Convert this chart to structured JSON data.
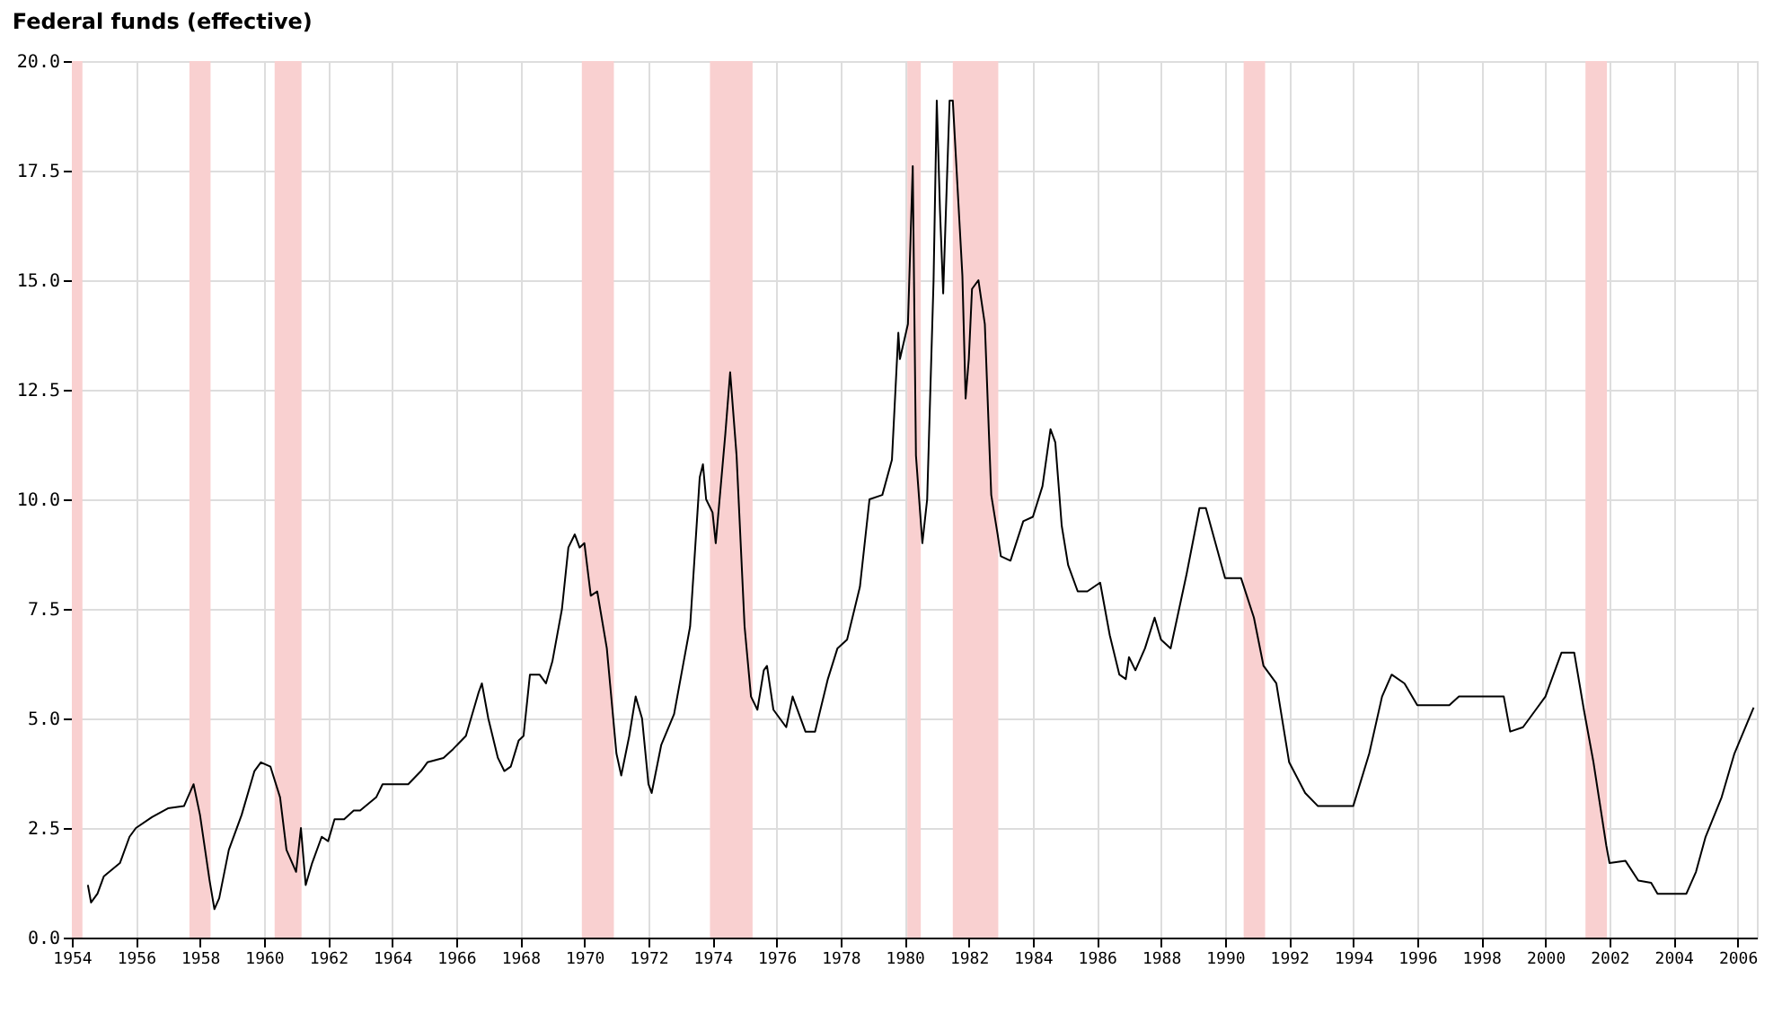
{
  "chart_data": {
    "type": "line",
    "title": "Federal funds (effective)",
    "xlim": [
      1954,
      2006.6
    ],
    "xticks": [
      1954,
      1956,
      1958,
      1960,
      1962,
      1964,
      1966,
      1968,
      1970,
      1972,
      1974,
      1976,
      1978,
      1980,
      1982,
      1984,
      1986,
      1988,
      1990,
      1992,
      1994,
      1996,
      1998,
      2000,
      2002,
      2004,
      2006
    ],
    "ylim": [
      0,
      20
    ],
    "yticks": [
      {
        "value": 0,
        "label": "0.0"
      },
      2.5,
      {
        "value": 5,
        "label": "5.0"
      },
      7.5,
      {
        "value": 10,
        "label": "10.0"
      },
      12.5,
      {
        "value": 15,
        "label": "15.0"
      },
      17.5,
      {
        "value": 20,
        "label": "20.0"
      }
    ],
    "grid": true,
    "marker": "none",
    "line_style": "solid",
    "series": [
      {
        "color": "#000000",
        "x": [
          1954.5,
          1954.6,
          1954.8,
          1955.0,
          1955.5,
          1955.8,
          1956.0,
          1956.5,
          1957.0,
          1957.5,
          1957.8,
          1958.0,
          1958.3,
          1958.45,
          1958.6,
          1958.9,
          1959.3,
          1959.7,
          1959.9,
          1960.2,
          1960.5,
          1960.7,
          1961.0,
          1961.15,
          1961.3,
          1961.5,
          1961.8,
          1962.0,
          1962.2,
          1962.5,
          1962.8,
          1963.0,
          1963.5,
          1963.7,
          1964.0,
          1964.5,
          1964.9,
          1965.1,
          1965.6,
          1965.9,
          1966.3,
          1966.7,
          1966.8,
          1967.0,
          1967.3,
          1967.5,
          1967.7,
          1967.95,
          1968.1,
          1968.3,
          1968.6,
          1968.8,
          1969.0,
          1969.3,
          1969.5,
          1969.7,
          1969.85,
          1970.0,
          1970.2,
          1970.4,
          1970.7,
          1971.0,
          1971.15,
          1971.4,
          1971.6,
          1971.8,
          1972.0,
          1972.1,
          1972.4,
          1972.8,
          1973.0,
          1973.3,
          1973.6,
          1973.7,
          1973.8,
          1974.0,
          1974.1,
          1974.4,
          1974.55,
          1974.75,
          1975.0,
          1975.2,
          1975.4,
          1975.6,
          1975.7,
          1975.9,
          1976.3,
          1976.5,
          1976.9,
          1977.2,
          1977.6,
          1977.9,
          1978.2,
          1978.6,
          1978.9,
          1979.3,
          1979.6,
          1979.8,
          1979.85,
          1980.1,
          1980.25,
          1980.35,
          1980.55,
          1980.7,
          1980.9,
          1981.0,
          1981.1,
          1981.2,
          1981.4,
          1981.5,
          1981.8,
          1981.9,
          1982.0,
          1982.1,
          1982.3,
          1982.5,
          1982.7,
          1982.9,
          1983.0,
          1983.3,
          1983.7,
          1984.0,
          1984.3,
          1984.55,
          1984.7,
          1984.9,
          1985.1,
          1985.4,
          1985.7,
          1986.1,
          1986.4,
          1986.7,
          1986.9,
          1987.0,
          1987.2,
          1987.5,
          1987.8,
          1988.0,
          1988.3,
          1988.8,
          1989.2,
          1989.4,
          1989.7,
          1990.0,
          1990.5,
          1990.9,
          1991.2,
          1991.6,
          1992.0,
          1992.5,
          1992.9,
          1993.5,
          1994.0,
          1994.5,
          1994.9,
          1995.2,
          1995.6,
          1996.0,
          1996.5,
          1997.0,
          1997.3,
          1998.0,
          1998.7,
          1998.9,
          1999.3,
          1999.7,
          2000.0,
          2000.5,
          2000.9,
          2001.2,
          2001.5,
          2001.9,
          2002.0,
          2002.5,
          2002.9,
          2003.3,
          2003.5,
          2004.0,
          2004.4,
          2004.7,
          2005.0,
          2005.5,
          2005.9,
          2006.3,
          2006.5
        ],
        "values": [
          1.2,
          0.8,
          1.0,
          1.4,
          1.7,
          2.3,
          2.5,
          2.75,
          2.95,
          3.0,
          3.5,
          2.8,
          1.3,
          0.65,
          0.9,
          2.0,
          2.8,
          3.8,
          4.0,
          3.9,
          3.2,
          2.0,
          1.5,
          2.5,
          1.2,
          1.7,
          2.3,
          2.2,
          2.7,
          2.7,
          2.9,
          2.9,
          3.2,
          3.5,
          3.5,
          3.5,
          3.8,
          4.0,
          4.1,
          4.3,
          4.6,
          5.6,
          5.8,
          5.0,
          4.1,
          3.8,
          3.9,
          4.5,
          4.6,
          6.0,
          6.0,
          5.8,
          6.3,
          7.5,
          8.9,
          9.2,
          8.9,
          9.0,
          7.8,
          7.9,
          6.6,
          4.2,
          3.7,
          4.6,
          5.5,
          5.0,
          3.5,
          3.3,
          4.4,
          5.1,
          5.9,
          7.1,
          10.5,
          10.8,
          10.0,
          9.7,
          9.0,
          11.5,
          12.9,
          11.0,
          7.1,
          5.5,
          5.2,
          6.1,
          6.2,
          5.2,
          4.8,
          5.5,
          4.7,
          4.7,
          5.9,
          6.6,
          6.8,
          8.0,
          10.0,
          10.1,
          10.9,
          13.8,
          13.2,
          14.0,
          17.6,
          11.0,
          9.0,
          10.0,
          15.0,
          19.1,
          16.6,
          14.7,
          19.1,
          19.1,
          15.1,
          12.3,
          13.2,
          14.8,
          15.0,
          14.0,
          10.1,
          9.2,
          8.7,
          8.6,
          9.5,
          9.6,
          10.3,
          11.6,
          11.3,
          9.4,
          8.5,
          7.9,
          7.9,
          8.1,
          6.9,
          6.0,
          5.9,
          6.4,
          6.1,
          6.6,
          7.3,
          6.8,
          6.6,
          8.3,
          9.8,
          9.8,
          9.0,
          8.2,
          8.2,
          7.3,
          6.2,
          5.8,
          4.0,
          3.3,
          3.0,
          3.0,
          3.0,
          4.2,
          5.5,
          6.0,
          5.8,
          5.3,
          5.3,
          5.3,
          5.5,
          5.5,
          5.5,
          4.7,
          4.8,
          5.2,
          5.5,
          6.5,
          6.5,
          5.2,
          4.0,
          2.1,
          1.7,
          1.75,
          1.3,
          1.25,
          1.0,
          1.0,
          1.0,
          1.5,
          2.3,
          3.2,
          4.2,
          4.9,
          5.25
        ]
      }
    ],
    "bands": [
      {
        "axis": "x",
        "from": 1954.0,
        "to": 1954.33,
        "color": "#f9d0d0"
      },
      {
        "axis": "x",
        "from": 1957.67,
        "to": 1958.33,
        "color": "#f9d0d0"
      },
      {
        "axis": "x",
        "from": 1960.33,
        "to": 1961.17,
        "color": "#f9d0d0"
      },
      {
        "axis": "x",
        "from": 1969.92,
        "to": 1970.92,
        "color": "#f9d0d0"
      },
      {
        "axis": "x",
        "from": 1973.92,
        "to": 1975.25,
        "color": "#f9d0d0"
      },
      {
        "axis": "x",
        "from": 1980.08,
        "to": 1980.5,
        "color": "#f9d0d0"
      },
      {
        "axis": "x",
        "from": 1981.5,
        "to": 1982.92,
        "color": "#f9d0d0"
      },
      {
        "axis": "x",
        "from": 1990.58,
        "to": 1991.25,
        "color": "#f9d0d0"
      },
      {
        "axis": "x",
        "from": 2001.25,
        "to": 2001.92,
        "color": "#f9d0d0"
      }
    ]
  }
}
